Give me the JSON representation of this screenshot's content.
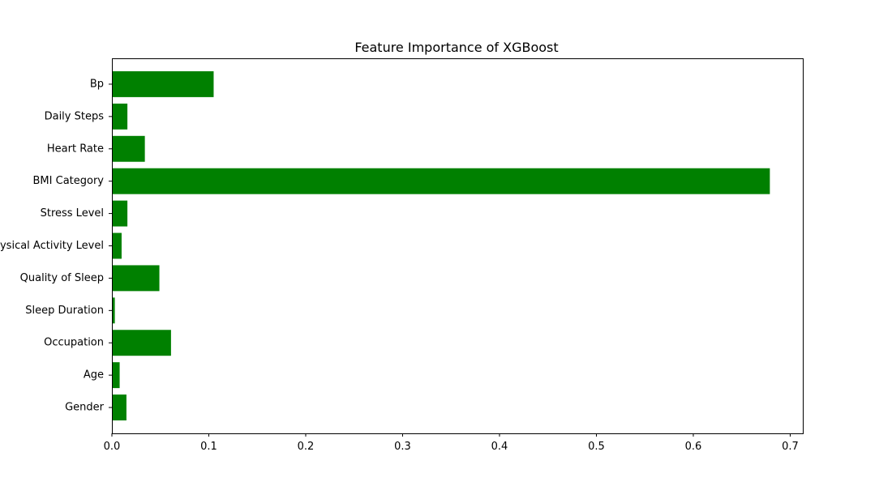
{
  "chart_data": {
    "type": "bar",
    "orientation": "horizontal",
    "title": "Feature Importance of XGBoost",
    "xlabel": "",
    "ylabel": "",
    "categories": [
      "Gender",
      "Age",
      "Occupation",
      "Sleep Duration",
      "Quality of Sleep",
      "Physical Activity Level",
      "Stress Level",
      "BMI Category",
      "Heart Rate",
      "Daily Steps",
      "Bp"
    ],
    "values": [
      0.015,
      0.008,
      0.061,
      0.003,
      0.049,
      0.01,
      0.016,
      0.679,
      0.034,
      0.016,
      0.105
    ],
    "xlim": [
      0,
      0.713
    ],
    "xticks": [
      0.0,
      0.1,
      0.2,
      0.3,
      0.4,
      0.5,
      0.6,
      0.7
    ],
    "xtick_labels": [
      "0.0",
      "0.1",
      "0.2",
      "0.3",
      "0.4",
      "0.5",
      "0.6",
      "0.7"
    ],
    "bar_color": "#008000",
    "grid": false,
    "legend": "none"
  }
}
